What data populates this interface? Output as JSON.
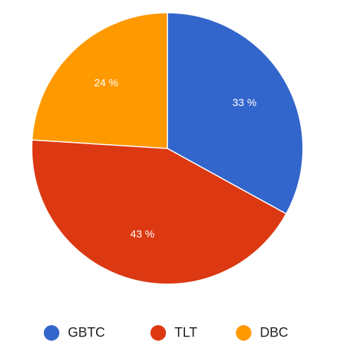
{
  "chart_data": {
    "type": "pie",
    "slices": [
      {
        "label": "GBTC",
        "value": 33,
        "value_label": "33 %",
        "color": "#3366cc"
      },
      {
        "label": "TLT",
        "value": 43,
        "value_label": "43 %",
        "color": "#dc3912"
      },
      {
        "label": "DBC",
        "value": 24,
        "value_label": "24 %",
        "color": "#ff9900"
      }
    ],
    "legend_position": "bottom",
    "start_angle": "12 o'clock",
    "direction": "clockwise"
  }
}
